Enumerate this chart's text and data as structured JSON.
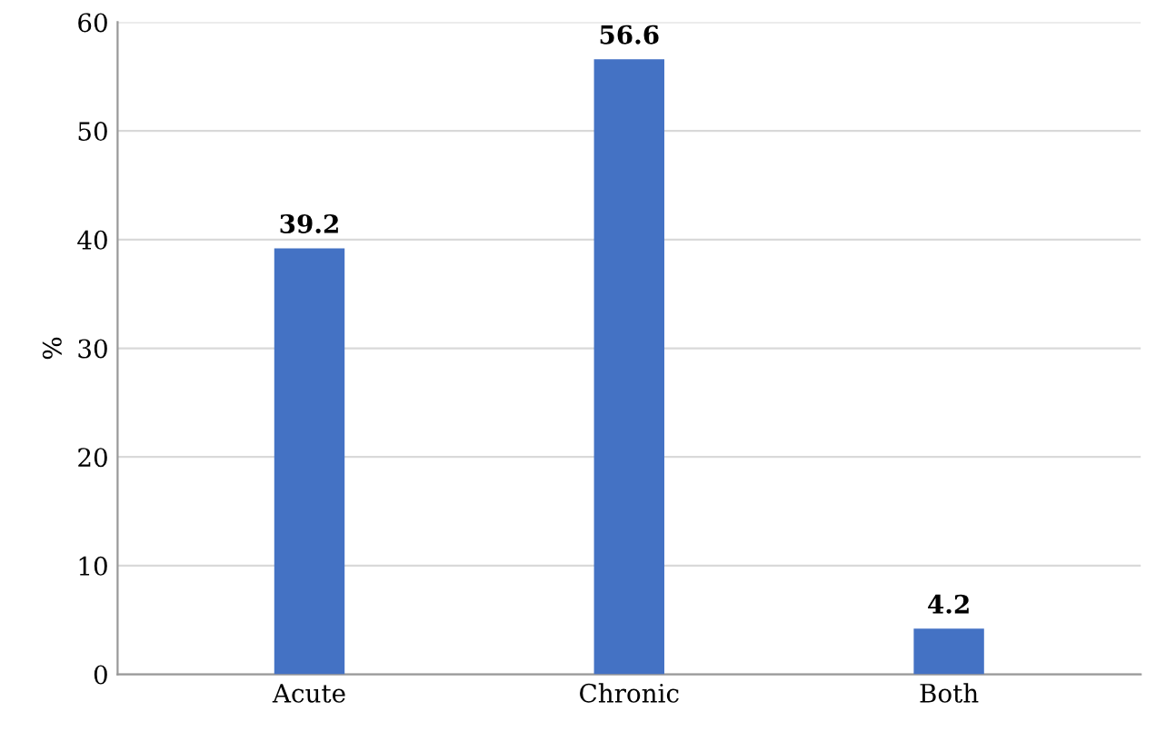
{
  "chart_data": {
    "type": "bar",
    "ylabel": "%",
    "categories": [
      "Acute",
      "Chronic",
      "Both"
    ],
    "values": [
      39.2,
      56.6,
      4.2
    ],
    "color": "#4472c4",
    "ylim": [
      0,
      60
    ],
    "yticks": [
      0,
      10,
      20,
      30,
      40,
      50,
      60
    ],
    "grid": "y",
    "data_labels": true
  }
}
